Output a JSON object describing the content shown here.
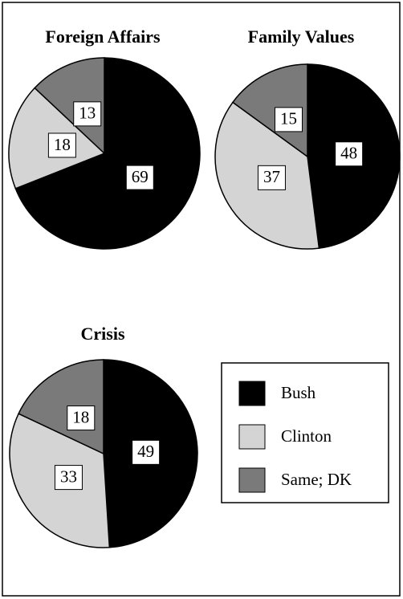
{
  "chart_data": [
    {
      "type": "pie",
      "title": "Foreign Affairs",
      "categories": [
        "Bush",
        "Clinton",
        "Same; DK"
      ],
      "values": [
        69,
        18,
        13
      ],
      "colors": [
        "#000000",
        "#d4d4d4",
        "#7a7a7a"
      ]
    },
    {
      "type": "pie",
      "title": "Family Values",
      "categories": [
        "Bush",
        "Clinton",
        "Same; DK"
      ],
      "values": [
        48,
        37,
        15
      ],
      "colors": [
        "#000000",
        "#d4d4d4",
        "#7a7a7a"
      ]
    },
    {
      "type": "pie",
      "title": "Crisis",
      "categories": [
        "Bush",
        "Clinton",
        "Same; DK"
      ],
      "values": [
        49,
        33,
        18
      ],
      "colors": [
        "#000000",
        "#d4d4d4",
        "#7a7a7a"
      ]
    }
  ]
}
